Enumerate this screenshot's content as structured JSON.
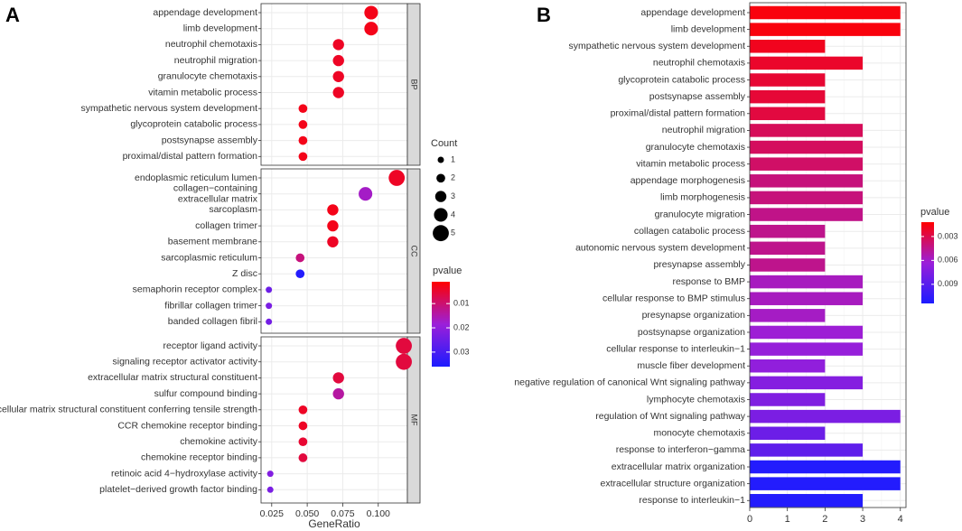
{
  "colors": {
    "high": "#FF0000",
    "mid": "#9B1FD9",
    "low": "#1C1CFF",
    "facet_strip": "#D9D9D9",
    "grid": "#EBEBEB"
  },
  "chart_data": [
    {
      "panel_label": "A",
      "type": "scatter",
      "xlabel": "GeneRatio",
      "x_ticks": [
        0.025,
        0.05,
        0.075,
        0.1
      ],
      "x_tick_labels": [
        "0.025",
        "0.050",
        "0.075",
        "0.100"
      ],
      "xlim": [
        0.0175,
        0.1205
      ],
      "size_legend": {
        "title": "Count",
        "values": [
          1,
          2,
          3,
          4,
          5
        ]
      },
      "color_legend": {
        "title": "pvalue",
        "ticks": [
          0.01,
          0.02,
          0.03
        ],
        "tick_labels": [
          "0.01",
          "0.02",
          "0.03"
        ],
        "range": [
          0.001,
          0.036
        ]
      },
      "facets": [
        {
          "name": "BP",
          "terms": [
            {
              "term": "appendage development",
              "ratio": 0.095,
              "count": 4,
              "p": 0.003
            },
            {
              "term": "limb development",
              "ratio": 0.095,
              "count": 4,
              "p": 0.003
            },
            {
              "term": "neutrophil chemotaxis",
              "ratio": 0.072,
              "count": 3,
              "p": 0.004
            },
            {
              "term": "neutrophil migration",
              "ratio": 0.072,
              "count": 3,
              "p": 0.004
            },
            {
              "term": "granulocyte chemotaxis",
              "ratio": 0.072,
              "count": 3,
              "p": 0.004
            },
            {
              "term": "vitamin metabolic process",
              "ratio": 0.072,
              "count": 3,
              "p": 0.004
            },
            {
              "term": "sympathetic nervous system development",
              "ratio": 0.047,
              "count": 2,
              "p": 0.003
            },
            {
              "term": "glycoprotein catabolic process",
              "ratio": 0.047,
              "count": 2,
              "p": 0.003
            },
            {
              "term": "postsynapse assembly",
              "ratio": 0.047,
              "count": 2,
              "p": 0.003
            },
            {
              "term": "proximal/distal pattern formation",
              "ratio": 0.047,
              "count": 2,
              "p": 0.003
            }
          ]
        },
        {
          "name": "CC",
          "terms": [
            {
              "term": "endoplasmic reticulum lumen",
              "ratio": 0.113,
              "count": 5,
              "p": 0.004
            },
            {
              "term": "collagen−containing\nextracellular matrix",
              "ratio": 0.091,
              "count": 4,
              "p": 0.017
            },
            {
              "term": "sarcoplasm",
              "ratio": 0.068,
              "count": 3,
              "p": 0.003
            },
            {
              "term": "collagen trimer",
              "ratio": 0.068,
              "count": 3,
              "p": 0.003
            },
            {
              "term": "basement membrane",
              "ratio": 0.068,
              "count": 3,
              "p": 0.004
            },
            {
              "term": "sarcoplasmic reticulum",
              "ratio": 0.045,
              "count": 2,
              "p": 0.011
            },
            {
              "term": "Z disc",
              "ratio": 0.045,
              "count": 2,
              "p": 0.035
            },
            {
              "term": "semaphorin receptor complex",
              "ratio": 0.023,
              "count": 1,
              "p": 0.025
            },
            {
              "term": "fibrillar collagen trimer",
              "ratio": 0.023,
              "count": 1,
              "p": 0.023
            },
            {
              "term": "banded collagen fibril",
              "ratio": 0.023,
              "count": 1,
              "p": 0.024
            }
          ]
        },
        {
          "name": "MF",
          "terms": [
            {
              "term": "receptor ligand activity",
              "ratio": 0.118,
              "count": 5,
              "p": 0.006
            },
            {
              "term": "signaling receptor activator activity",
              "ratio": 0.118,
              "count": 5,
              "p": 0.006
            },
            {
              "term": "extracellular matrix structural constituent",
              "ratio": 0.072,
              "count": 3,
              "p": 0.006
            },
            {
              "term": "sulfur compound binding",
              "ratio": 0.072,
              "count": 3,
              "p": 0.014
            },
            {
              "term": "extracellular matrix structural constituent conferring tensile strength",
              "ratio": 0.047,
              "count": 2,
              "p": 0.004
            },
            {
              "term": "CCR chemokine receptor binding",
              "ratio": 0.047,
              "count": 2,
              "p": 0.004
            },
            {
              "term": "chemokine activity",
              "ratio": 0.047,
              "count": 2,
              "p": 0.005
            },
            {
              "term": "chemokine receptor binding",
              "ratio": 0.047,
              "count": 2,
              "p": 0.006
            },
            {
              "term": "retinoic acid 4−hydroxylase activity",
              "ratio": 0.024,
              "count": 1,
              "p": 0.022
            },
            {
              "term": "platelet−derived growth factor binding",
              "ratio": 0.024,
              "count": 1,
              "p": 0.023
            }
          ]
        }
      ]
    },
    {
      "panel_label": "B",
      "type": "bar",
      "orientation": "horizontal",
      "xlim": [
        0,
        4.15
      ],
      "x_ticks": [
        0,
        1,
        2,
        3,
        4
      ],
      "color_legend": {
        "title": "pvalue",
        "ticks": [
          0.003,
          0.006,
          0.009
        ],
        "tick_labels": [
          "0.003",
          "0.006",
          "0.009"
        ],
        "range": [
          0.0012,
          0.0114
        ]
      },
      "bars": [
        {
          "term": "appendage development",
          "count": 4,
          "p": 0.0015
        },
        {
          "term": "limb development",
          "count": 4,
          "p": 0.0015
        },
        {
          "term": "sympathetic nervous system development",
          "count": 2,
          "p": 0.0019
        },
        {
          "term": "neutrophil chemotaxis",
          "count": 3,
          "p": 0.0022
        },
        {
          "term": "glycoprotein catabolic process",
          "count": 2,
          "p": 0.0024
        },
        {
          "term": "postsynapse assembly",
          "count": 2,
          "p": 0.0025
        },
        {
          "term": "proximal/distal pattern formation",
          "count": 2,
          "p": 0.0027
        },
        {
          "term": "neutrophil migration",
          "count": 3,
          "p": 0.0033
        },
        {
          "term": "granulocyte chemotaxis",
          "count": 3,
          "p": 0.0034
        },
        {
          "term": "vitamin metabolic process",
          "count": 3,
          "p": 0.0036
        },
        {
          "term": "appendage morphogenesis",
          "count": 3,
          "p": 0.0041
        },
        {
          "term": "limb morphogenesis",
          "count": 3,
          "p": 0.0041
        },
        {
          "term": "granulocyte migration",
          "count": 3,
          "p": 0.0044
        },
        {
          "term": "collagen catabolic process",
          "count": 2,
          "p": 0.0045
        },
        {
          "term": "autonomic nervous system development",
          "count": 2,
          "p": 0.0045
        },
        {
          "term": "presynapse assembly",
          "count": 2,
          "p": 0.0045
        },
        {
          "term": "response to BMP",
          "count": 3,
          "p": 0.0057
        },
        {
          "term": "cellular response to BMP stimulus",
          "count": 3,
          "p": 0.0057
        },
        {
          "term": "presynapse organization",
          "count": 2,
          "p": 0.0058
        },
        {
          "term": "postsynapse organization",
          "count": 3,
          "p": 0.0062
        },
        {
          "term": "cellular response to interleukin−1",
          "count": 3,
          "p": 0.0065
        },
        {
          "term": "muscle fiber development",
          "count": 2,
          "p": 0.0067
        },
        {
          "term": "negative regulation of canonical Wnt signaling pathway",
          "count": 3,
          "p": 0.0072
        },
        {
          "term": "lymphocyte chemotaxis",
          "count": 2,
          "p": 0.0074
        },
        {
          "term": "regulation of Wnt signaling pathway",
          "count": 4,
          "p": 0.0076
        },
        {
          "term": "monocyte chemotaxis",
          "count": 2,
          "p": 0.0082
        },
        {
          "term": "response to interferon−gamma",
          "count": 3,
          "p": 0.0087
        },
        {
          "term": "extracellular matrix organization",
          "count": 4,
          "p": 0.0111
        },
        {
          "term": "extracellular structure organization",
          "count": 4,
          "p": 0.0111
        },
        {
          "term": "response to interleukin−1",
          "count": 3,
          "p": 0.0111
        }
      ]
    }
  ]
}
